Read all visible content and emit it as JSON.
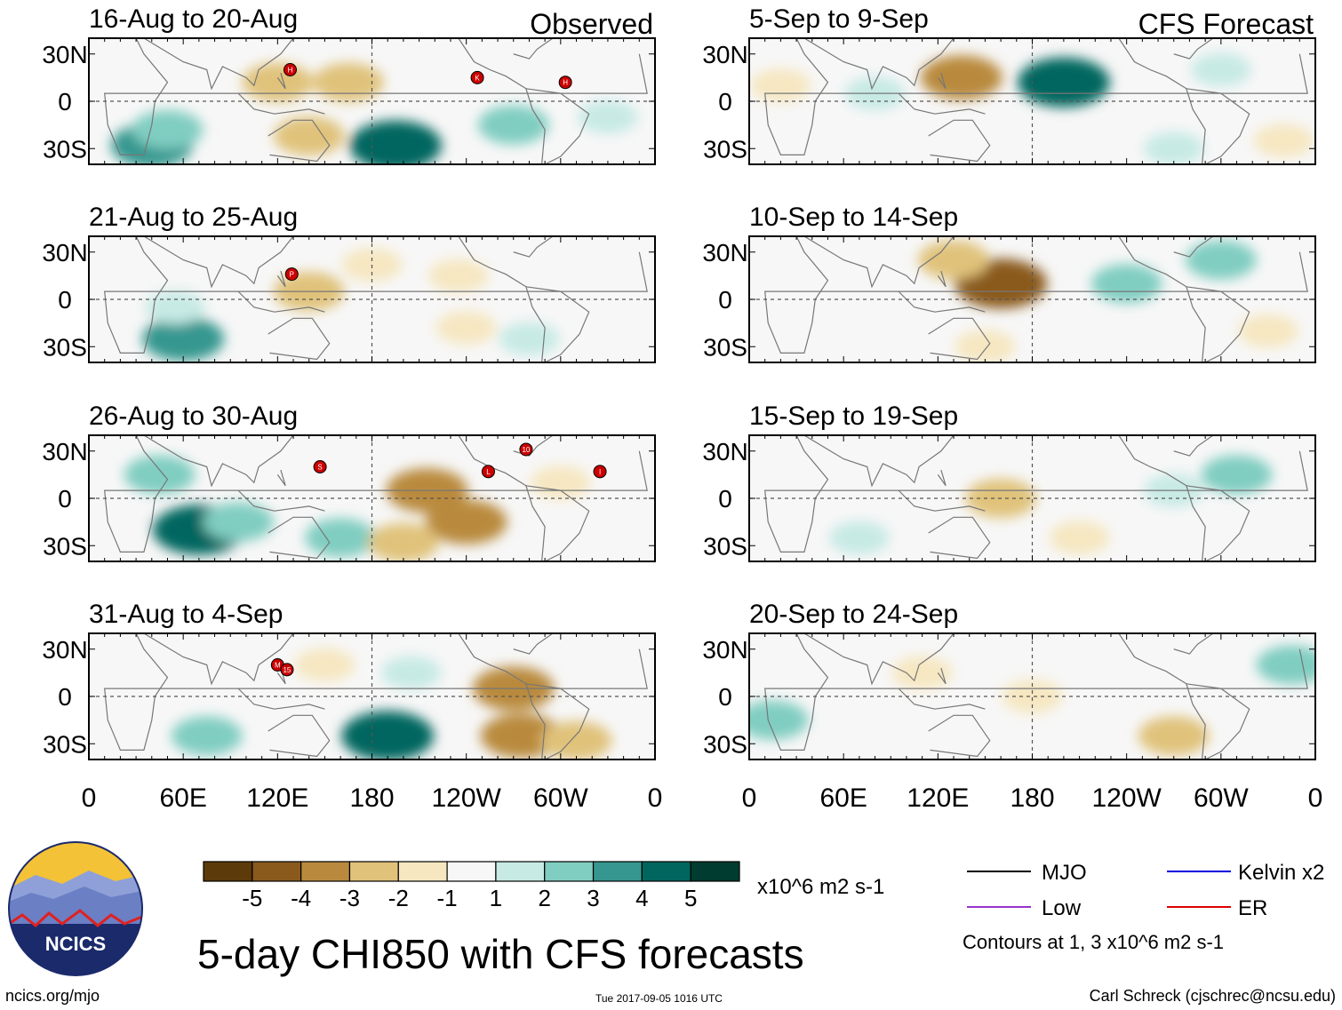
{
  "chart_data": {
    "type": "heatmap",
    "title": "5-day CHI850 with CFS forecasts",
    "variable": "CHI850",
    "units": "x10^6 m2 s-1",
    "x_ticks": [
      "0",
      "60E",
      "120E",
      "180",
      "120W",
      "60W",
      "0"
    ],
    "y_ticks": [
      "30N",
      "0",
      "30S"
    ],
    "observed_label": "Observed",
    "forecast_label": "CFS Forecast",
    "panels": [
      {
        "period": "16-Aug to 20-Aug",
        "source": "Observed",
        "storms": [
          {
            "lon": 128,
            "lat": 20,
            "label": "H"
          },
          {
            "lon": 247,
            "lat": 15,
            "label": "K"
          },
          {
            "lon": 303,
            "lat": 12,
            "label": "H"
          }
        ],
        "blobs": [
          {
            "lon": 40,
            "lat": -28,
            "value": 3
          },
          {
            "lon": 50,
            "lat": -18,
            "value": 2
          },
          {
            "lon": 195,
            "lat": -28,
            "value": 4
          },
          {
            "lon": 120,
            "lat": 12,
            "value": -2
          },
          {
            "lon": 165,
            "lat": 12,
            "value": -2
          },
          {
            "lon": 140,
            "lat": -22,
            "value": -2
          },
          {
            "lon": 270,
            "lat": -15,
            "value": 2
          },
          {
            "lon": 330,
            "lat": -10,
            "value": 1
          }
        ]
      },
      {
        "period": "21-Aug to 25-Aug",
        "source": "Observed",
        "storms": [
          {
            "lon": 129,
            "lat": 16,
            "label": "P"
          }
        ],
        "blobs": [
          {
            "lon": 60,
            "lat": -25,
            "value": 3
          },
          {
            "lon": 55,
            "lat": -5,
            "value": 1
          },
          {
            "lon": 140,
            "lat": 5,
            "value": -2
          },
          {
            "lon": 180,
            "lat": 22,
            "value": -1
          },
          {
            "lon": 235,
            "lat": 15,
            "value": -1
          },
          {
            "lon": 280,
            "lat": -25,
            "value": 1
          },
          {
            "lon": 240,
            "lat": -18,
            "value": -1
          }
        ]
      },
      {
        "period": "26-Aug to 30-Aug",
        "source": "Observed",
        "storms": [
          {
            "lon": 147,
            "lat": 20,
            "label": "S"
          },
          {
            "lon": 254,
            "lat": 17,
            "label": "L"
          },
          {
            "lon": 278,
            "lat": 31,
            "label": "10"
          },
          {
            "lon": 325,
            "lat": 17,
            "label": "I"
          }
        ],
        "blobs": [
          {
            "lon": 70,
            "lat": -20,
            "value": 4
          },
          {
            "lon": 45,
            "lat": 15,
            "value": 2
          },
          {
            "lon": 95,
            "lat": -15,
            "value": 2
          },
          {
            "lon": 160,
            "lat": -25,
            "value": 2
          },
          {
            "lon": 215,
            "lat": 5,
            "value": -3
          },
          {
            "lon": 240,
            "lat": -15,
            "value": -3
          },
          {
            "lon": 300,
            "lat": 10,
            "value": -1
          },
          {
            "lon": 200,
            "lat": -28,
            "value": -2
          }
        ]
      },
      {
        "period": "31-Aug to 4-Sep",
        "source": "Observed",
        "storms": [
          {
            "lon": 120,
            "lat": 20,
            "label": "M"
          },
          {
            "lon": 126,
            "lat": 17,
            "label": "15"
          }
        ],
        "blobs": [
          {
            "lon": 190,
            "lat": -25,
            "value": 4
          },
          {
            "lon": 75,
            "lat": -25,
            "value": 2
          },
          {
            "lon": 205,
            "lat": 15,
            "value": 1
          },
          {
            "lon": 270,
            "lat": 5,
            "value": -3
          },
          {
            "lon": 275,
            "lat": -25,
            "value": -3
          },
          {
            "lon": 310,
            "lat": -28,
            "value": -2
          },
          {
            "lon": 150,
            "lat": 20,
            "value": -1
          }
        ]
      },
      {
        "period": "5-Sep to 9-Sep",
        "source": "CFS Forecast",
        "storms": [],
        "blobs": [
          {
            "lon": 200,
            "lat": 12,
            "value": 4
          },
          {
            "lon": 135,
            "lat": 15,
            "value": -3
          },
          {
            "lon": 80,
            "lat": 5,
            "value": 1
          },
          {
            "lon": 270,
            "lat": -30,
            "value": 1
          },
          {
            "lon": 300,
            "lat": 20,
            "value": 1
          },
          {
            "lon": 20,
            "lat": 10,
            "value": -1
          },
          {
            "lon": 340,
            "lat": -25,
            "value": -1
          }
        ]
      },
      {
        "period": "10-Sep to 14-Sep",
        "source": "CFS Forecast",
        "storms": [],
        "blobs": [
          {
            "lon": 160,
            "lat": 10,
            "value": -4
          },
          {
            "lon": 130,
            "lat": 25,
            "value": -2
          },
          {
            "lon": 240,
            "lat": 10,
            "value": 2
          },
          {
            "lon": 300,
            "lat": 25,
            "value": 2
          },
          {
            "lon": 150,
            "lat": -30,
            "value": -1
          },
          {
            "lon": 330,
            "lat": -20,
            "value": -1
          }
        ]
      },
      {
        "period": "15-Sep to 19-Sep",
        "source": "CFS Forecast",
        "storms": [],
        "blobs": [
          {
            "lon": 310,
            "lat": 15,
            "value": 2
          },
          {
            "lon": 270,
            "lat": 5,
            "value": 1
          },
          {
            "lon": 160,
            "lat": 0,
            "value": -2
          },
          {
            "lon": 210,
            "lat": -25,
            "value": -1
          },
          {
            "lon": 70,
            "lat": -25,
            "value": 1
          }
        ]
      },
      {
        "period": "20-Sep to 24-Sep",
        "source": "CFS Forecast",
        "storms": [],
        "blobs": [
          {
            "lon": 15,
            "lat": -15,
            "value": 2
          },
          {
            "lon": 345,
            "lat": 20,
            "value": 2
          },
          {
            "lon": 270,
            "lat": -25,
            "value": -2
          },
          {
            "lon": 110,
            "lat": 15,
            "value": -1
          },
          {
            "lon": 180,
            "lat": 0,
            "value": -1
          }
        ]
      }
    ],
    "colorbar": {
      "ticks": [
        "-5",
        "-4",
        "-3",
        "-2",
        "-1",
        "1",
        "2",
        "3",
        "4",
        "5"
      ],
      "colors": [
        "#5c3a0a",
        "#8a5a1c",
        "#b98a3e",
        "#e0c27a",
        "#f6e7c1",
        "#f7f7f7",
        "#c7eae5",
        "#80cdc1",
        "#35978f",
        "#01665e",
        "#003c30"
      ],
      "units": "x10^6 m2 s-1"
    },
    "legend": [
      {
        "label": "MJO",
        "color": "#000000"
      },
      {
        "label": "Kelvin x2",
        "color": "#0000dd"
      },
      {
        "label": "Low",
        "color": "#9933cc"
      },
      {
        "label": "ER",
        "color": "#dd0000"
      }
    ],
    "contour_note": "Contours at 1, 3 x10^6 m2 s-1"
  },
  "footer": {
    "logo_text": "NCICS",
    "url": "ncics.org/mjo",
    "timestamp": "Tue 2017-09-05 1016 UTC",
    "author": "Carl Schreck (cjschrec@ncsu.edu)"
  }
}
